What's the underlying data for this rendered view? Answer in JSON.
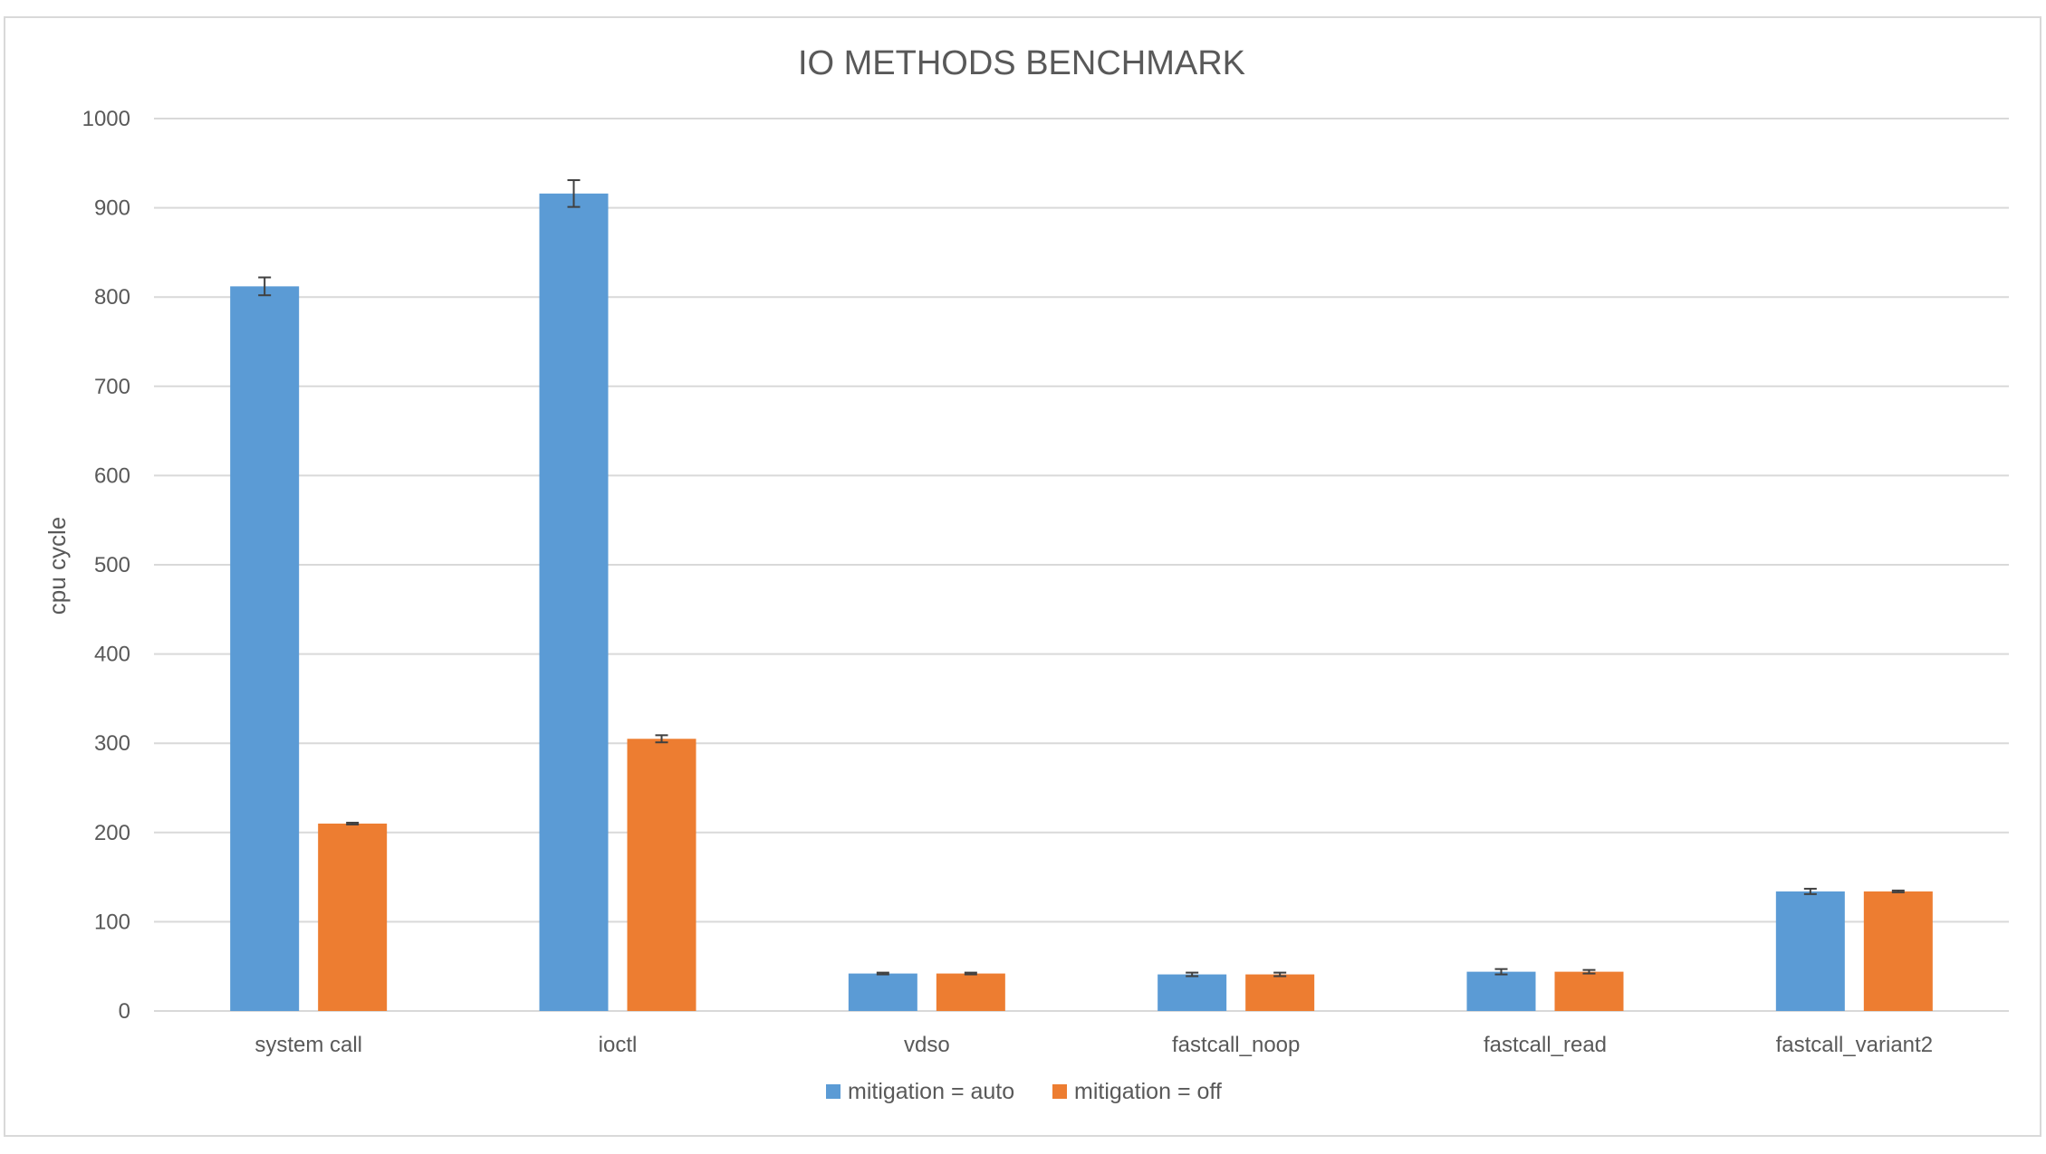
{
  "chart_data": {
    "type": "bar",
    "title": "IO METHODS BENCHMARK",
    "xlabel": "",
    "ylabel": "cpu cycle",
    "ylim": [
      0,
      1000
    ],
    "yticks": [
      0,
      100,
      200,
      300,
      400,
      500,
      600,
      700,
      800,
      900,
      1000
    ],
    "grid": true,
    "legend_position": "bottom",
    "categories": [
      "system call",
      "ioctl",
      "vdso",
      "fastcall_noop",
      "fastcall_read",
      "fastcall_variant2"
    ],
    "series": [
      {
        "name": "mitigation = auto",
        "color": "#5b9bd5",
        "values": [
          812,
          916,
          42,
          41,
          44,
          134
        ],
        "errors": [
          10,
          15,
          1,
          2,
          3,
          3
        ]
      },
      {
        "name": "mitigation = off",
        "color": "#ed7d31",
        "values": [
          210,
          305,
          42,
          41,
          44,
          134
        ],
        "errors": [
          1,
          4,
          1,
          2,
          2,
          1
        ]
      }
    ]
  }
}
